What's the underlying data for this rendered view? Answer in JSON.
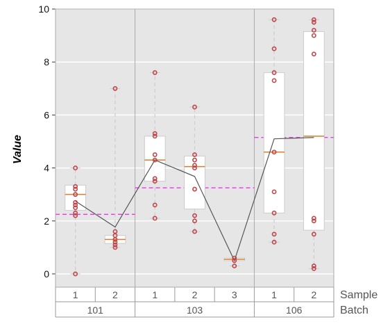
{
  "chart_data": {
    "type": "box",
    "ylabel": "Value",
    "ylim": [
      -0.5,
      10
    ],
    "yticks": [
      0,
      2,
      4,
      6,
      8,
      10
    ],
    "grid": true,
    "row_titles": [
      "Sample",
      "Batch"
    ],
    "batches": [
      {
        "name": "101",
        "group_mean": 2.25,
        "samples": [
          {
            "name": "1",
            "q1": 2.4,
            "median": 3.0,
            "q3": 3.35,
            "whisker_low": 0.0,
            "whisker_high": 4.0,
            "points": [
              0.0,
              2.2,
              2.3,
              2.5,
              2.6,
              2.7,
              3.0,
              3.2,
              3.3,
              4.0
            ],
            "mean": 2.75
          },
          {
            "name": "2",
            "q1": 1.15,
            "median": 1.3,
            "q3": 1.45,
            "whisker_low": 1.0,
            "whisker_high": 7.0,
            "points": [
              1.0,
              1.1,
              1.2,
              1.3,
              1.45,
              1.6,
              7.0
            ],
            "mean": 1.77
          }
        ]
      },
      {
        "name": "103",
        "group_mean": 3.25,
        "samples": [
          {
            "name": "1",
            "q1": 3.5,
            "median": 4.3,
            "q3": 5.2,
            "whisker_low": 2.1,
            "whisker_high": 7.6,
            "points": [
              2.1,
              2.6,
              3.5,
              3.6,
              4.3,
              4.5,
              5.2,
              5.3,
              7.6
            ],
            "mean": 4.3
          },
          {
            "name": "2",
            "q1": 2.45,
            "median": 4.05,
            "q3": 4.45,
            "whisker_low": 1.6,
            "whisker_high": 6.3,
            "points": [
              1.6,
              2.0,
              2.2,
              3.2,
              4.0,
              4.1,
              4.3,
              4.5,
              6.3
            ],
            "mean": 3.68
          },
          {
            "name": "3",
            "q1": 0.5,
            "median": 0.55,
            "q3": 0.6,
            "whisker_low": 0.3,
            "whisker_high": 0.6,
            "points": [
              0.3,
              0.5,
              0.6
            ],
            "mean": 0.5
          }
        ]
      },
      {
        "name": "106",
        "group_mean": 5.15,
        "samples": [
          {
            "name": "1",
            "q1": 2.3,
            "median": 4.6,
            "q3": 7.6,
            "whisker_low": 1.2,
            "whisker_high": 9.6,
            "points": [
              1.2,
              1.5,
              2.3,
              3.1,
              4.6,
              7.3,
              7.6,
              8.5,
              9.6
            ],
            "mean": 5.1
          },
          {
            "name": "2",
            "q1": 1.65,
            "median": 5.2,
            "q3": 9.15,
            "whisker_low": 0.2,
            "whisker_high": 9.6,
            "points": [
              0.2,
              0.3,
              1.5,
              2.0,
              2.1,
              8.3,
              9.0,
              9.2,
              9.5,
              9.6
            ],
            "mean": 5.15
          }
        ]
      }
    ],
    "colors": {
      "panel_bg": "#e6e6e6",
      "grid": "#ffffff",
      "box_fill": "#ffffff",
      "box_edge": "#cccccc",
      "median": "#e07b2a",
      "point": "#c0454a",
      "mean_line": "#555555",
      "group_mean": "#ee22ee",
      "whisker": "#cccccc"
    }
  }
}
